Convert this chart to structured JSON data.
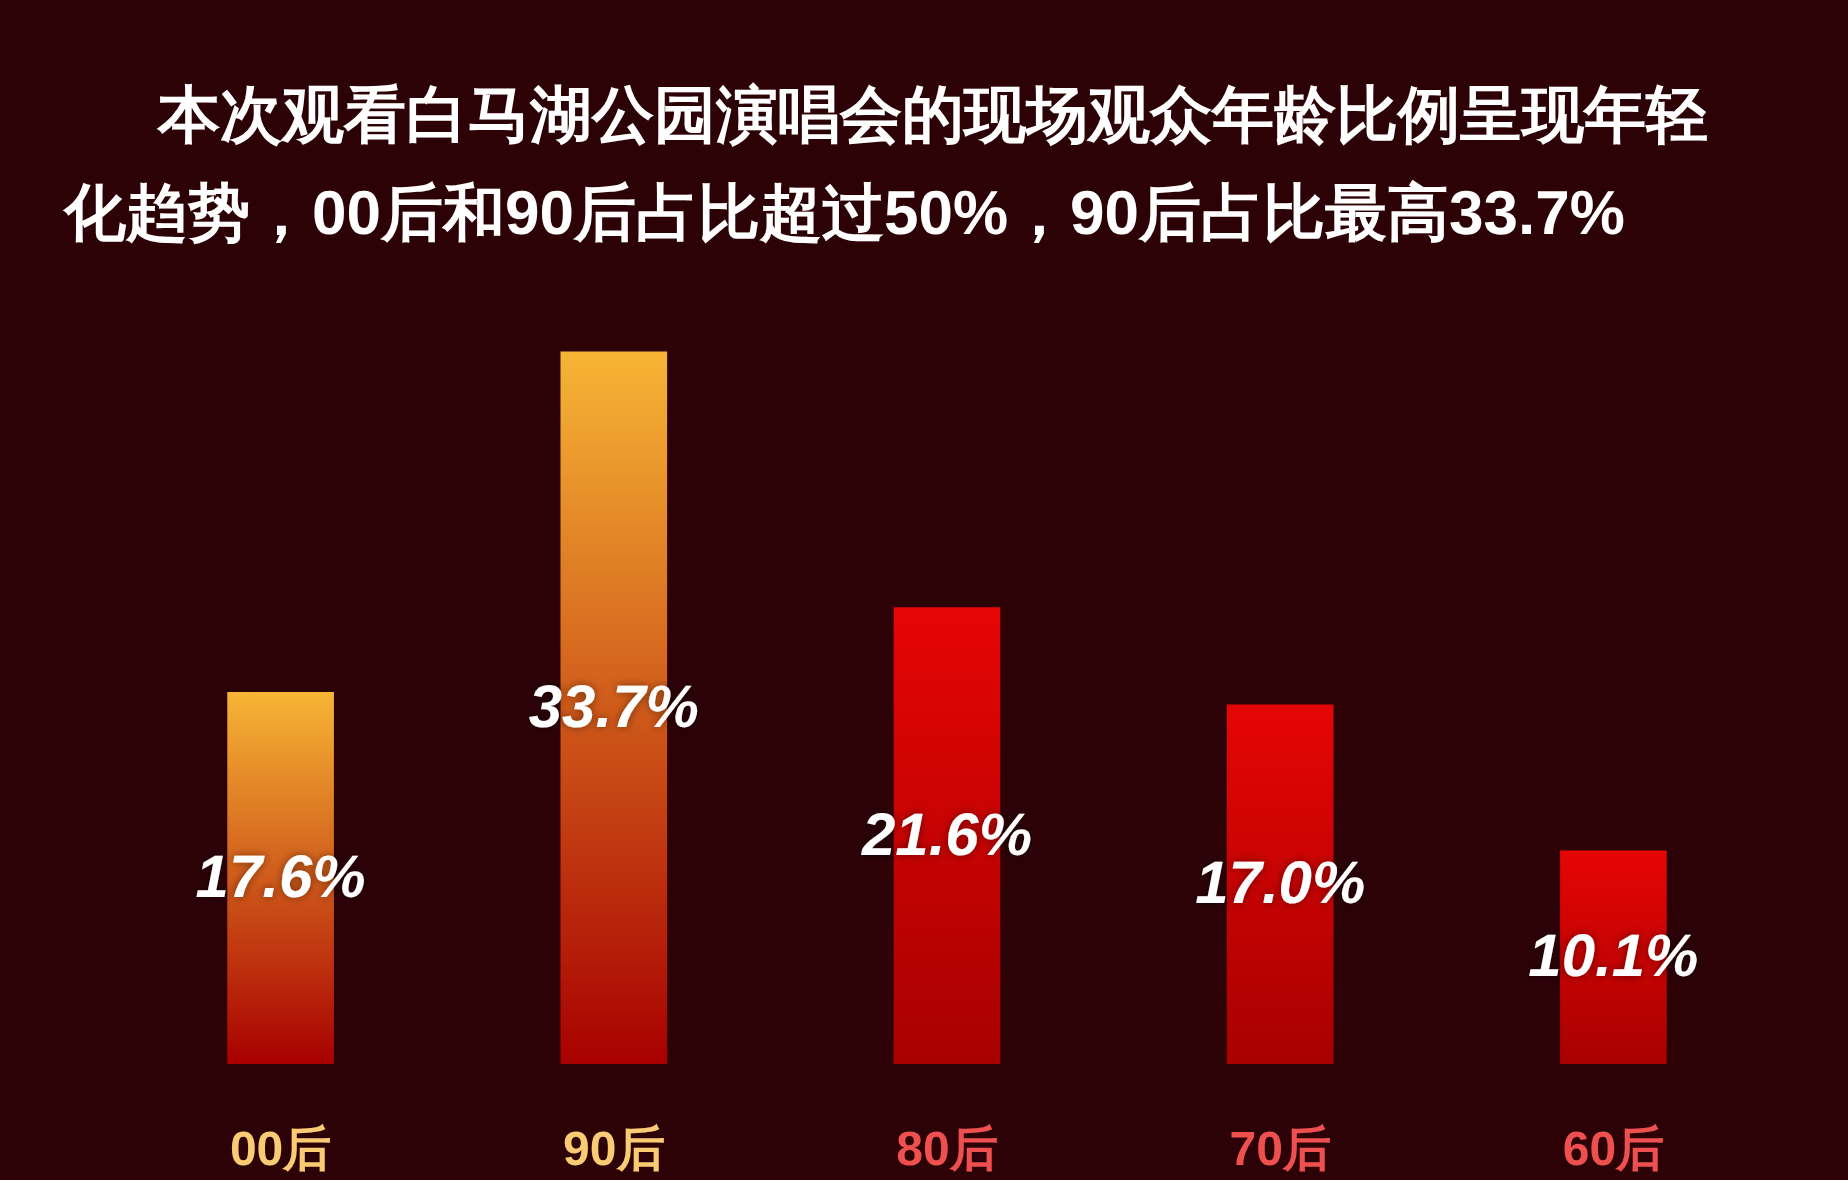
{
  "chart_data": {
    "type": "bar",
    "title": "本次观看白马湖公园演唱会的现场观众年龄比例呈现年轻化趋势，00后和90后占比超过50%，90后占比最高33.7%",
    "categories": [
      "00后",
      "90后",
      "80后",
      "70后",
      "60后"
    ],
    "values": [
      17.6,
      33.7,
      21.6,
      17.0,
      10.1
    ],
    "colors": [
      "#f7b535",
      "#f7b535",
      "#e60505",
      "#e60505",
      "#e60505"
    ],
    "value_labels": [
      "17.6%",
      "33.7%",
      "21.6%",
      "17.0%",
      "10.1%"
    ],
    "tick_labels": "x"
  }
}
